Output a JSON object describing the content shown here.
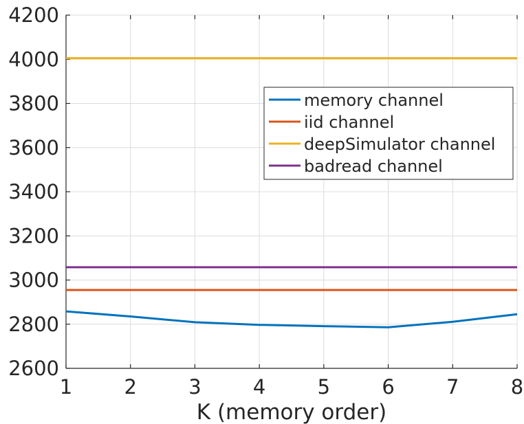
{
  "chart_data": {
    "type": "line",
    "title": "",
    "xlabel": "K (memory order)",
    "ylabel": "",
    "xlim": [
      1,
      8
    ],
    "ylim": [
      2600,
      4200
    ],
    "xticks": [
      1,
      2,
      3,
      4,
      5,
      6,
      7,
      8
    ],
    "yticks": [
      2600,
      2800,
      3000,
      3200,
      3400,
      3600,
      3800,
      4000,
      4200
    ],
    "grid": true,
    "legend_position": "upper-right",
    "x": [
      1,
      2,
      3,
      4,
      5,
      6,
      7,
      8
    ],
    "series": [
      {
        "name": "memory channel",
        "color": "#0072BD",
        "values": [
          2858,
          2835,
          2809,
          2797,
          2791,
          2786,
          2811,
          2845
        ]
      },
      {
        "name": "iid channel",
        "color": "#D95319",
        "values": [
          2955,
          2955,
          2955,
          2955,
          2955,
          2955,
          2955,
          2955
        ]
      },
      {
        "name": "deepSimulator channel",
        "color": "#EDB120",
        "values": [
          4005,
          4005,
          4005,
          4005,
          4005,
          4005,
          4005,
          4005
        ]
      },
      {
        "name": "badread channel",
        "color": "#7E2F8E",
        "values": [
          3058,
          3058,
          3058,
          3058,
          3058,
          3058,
          3058,
          3058
        ]
      }
    ]
  }
}
